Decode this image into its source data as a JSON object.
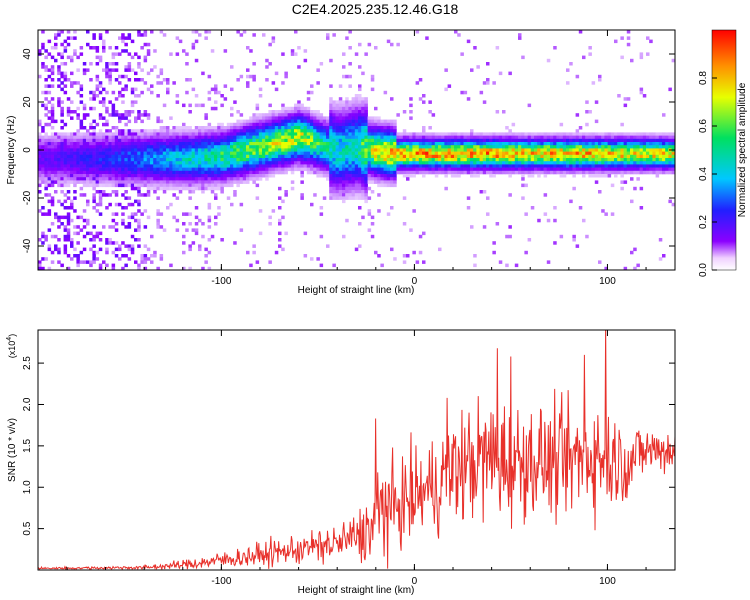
{
  "figure": {
    "title": "C2E4.2025.235.12.46.G18"
  },
  "colors": {
    "snr_line": "#e8302a",
    "background": "#ffffff",
    "axis": "#000000"
  },
  "chart_data": [
    {
      "type": "heatmap",
      "name": "spectrogram",
      "xlabel": "Height of straight line (km)",
      "ylabel": "Frequency (Hz)",
      "xlim": [
        -195,
        135
      ],
      "ylim": [
        -50,
        50
      ],
      "xticks": [
        -100,
        0,
        100
      ],
      "xtick_labels": [
        "-100",
        "0",
        "100"
      ],
      "yticks": [
        -40,
        -20,
        0,
        20,
        40
      ],
      "ytick_labels": [
        "-40",
        "-20",
        "0",
        "20",
        "40"
      ],
      "colorbar": {
        "label": "Normalized spectral amplitude",
        "range": [
          0.0,
          1.0
        ],
        "ticks": [
          0.0,
          0.2,
          0.4,
          0.6,
          0.8
        ],
        "tick_labels": [
          "0.0",
          "0.2",
          "0.4",
          "0.6",
          "0.8"
        ],
        "colormap": [
          "#ffffff",
          "#8b00ff",
          "#2020ff",
          "#00c8ff",
          "#00e060",
          "#e8ff00",
          "#ff9000",
          "#ff0000"
        ]
      },
      "ridge": {
        "description_points_x_km": [
          -195,
          -160,
          -140,
          -120,
          -100,
          -85,
          -70,
          -60,
          -50,
          -40,
          -30,
          -20,
          -10,
          0,
          20,
          40,
          60,
          80,
          100,
          135
        ],
        "frequency_hz": [
          -3,
          -3,
          -3,
          -3,
          -2,
          1,
          4,
          6,
          3,
          0,
          2,
          0,
          -1,
          -1,
          -1,
          -1,
          -1,
          -1,
          -1,
          -1
        ],
        "amplitude": [
          0.2,
          0.3,
          0.4,
          0.5,
          0.6,
          0.7,
          0.75,
          0.8,
          0.6,
          0.5,
          0.55,
          0.85,
          0.9,
          0.9,
          0.9,
          0.9,
          0.85,
          0.9,
          0.85,
          0.8
        ]
      }
    },
    {
      "type": "line",
      "name": "snr",
      "xlabel": "Height of straight line (km)",
      "ylabel": "SNR (10 * v/v)",
      "y_multiplier": "(x10",
      "y_multiplier_exp": "4",
      "y_multiplier_close": ")",
      "xlim": [
        -195,
        135
      ],
      "ylim": [
        0,
        2.9
      ],
      "xticks": [
        -100,
        0,
        100
      ],
      "xtick_labels": [
        "-100",
        "0",
        "100"
      ],
      "yticks": [
        0.5,
        1.0,
        1.5,
        2.0,
        2.5
      ],
      "ytick_labels": [
        "0.5",
        "1.0",
        "1.5",
        "2.0",
        "2.5"
      ],
      "envelope": {
        "x": [
          -195,
          -140,
          -120,
          -100,
          -80,
          -60,
          -40,
          -30,
          -22,
          -18,
          -10,
          0,
          10,
          20,
          30,
          40,
          50,
          60,
          70,
          80,
          90,
          100,
          110,
          120,
          135
        ],
        "mean": [
          0.02,
          0.03,
          0.06,
          0.12,
          0.18,
          0.25,
          0.32,
          0.4,
          0.5,
          0.75,
          0.75,
          0.9,
          1.0,
          1.2,
          1.3,
          1.35,
          1.3,
          1.35,
          1.3,
          1.3,
          1.4,
          1.35,
          1.3,
          1.45,
          1.45
        ],
        "spread": [
          0.01,
          0.02,
          0.05,
          0.08,
          0.12,
          0.15,
          0.2,
          0.25,
          0.35,
          0.55,
          0.4,
          0.45,
          0.5,
          0.55,
          0.6,
          0.65,
          0.6,
          0.55,
          0.55,
          0.55,
          0.6,
          0.5,
          0.4,
          0.25,
          0.25
        ]
      },
      "peaks": [
        {
          "x": -20,
          "y": 1.83
        },
        {
          "x": 17,
          "y": 2.08
        },
        {
          "x": 43,
          "y": 2.68
        },
        {
          "x": 50,
          "y": 2.58
        },
        {
          "x": 88,
          "y": 2.6
        },
        {
          "x": 99,
          "y": 3.0
        }
      ]
    }
  ]
}
